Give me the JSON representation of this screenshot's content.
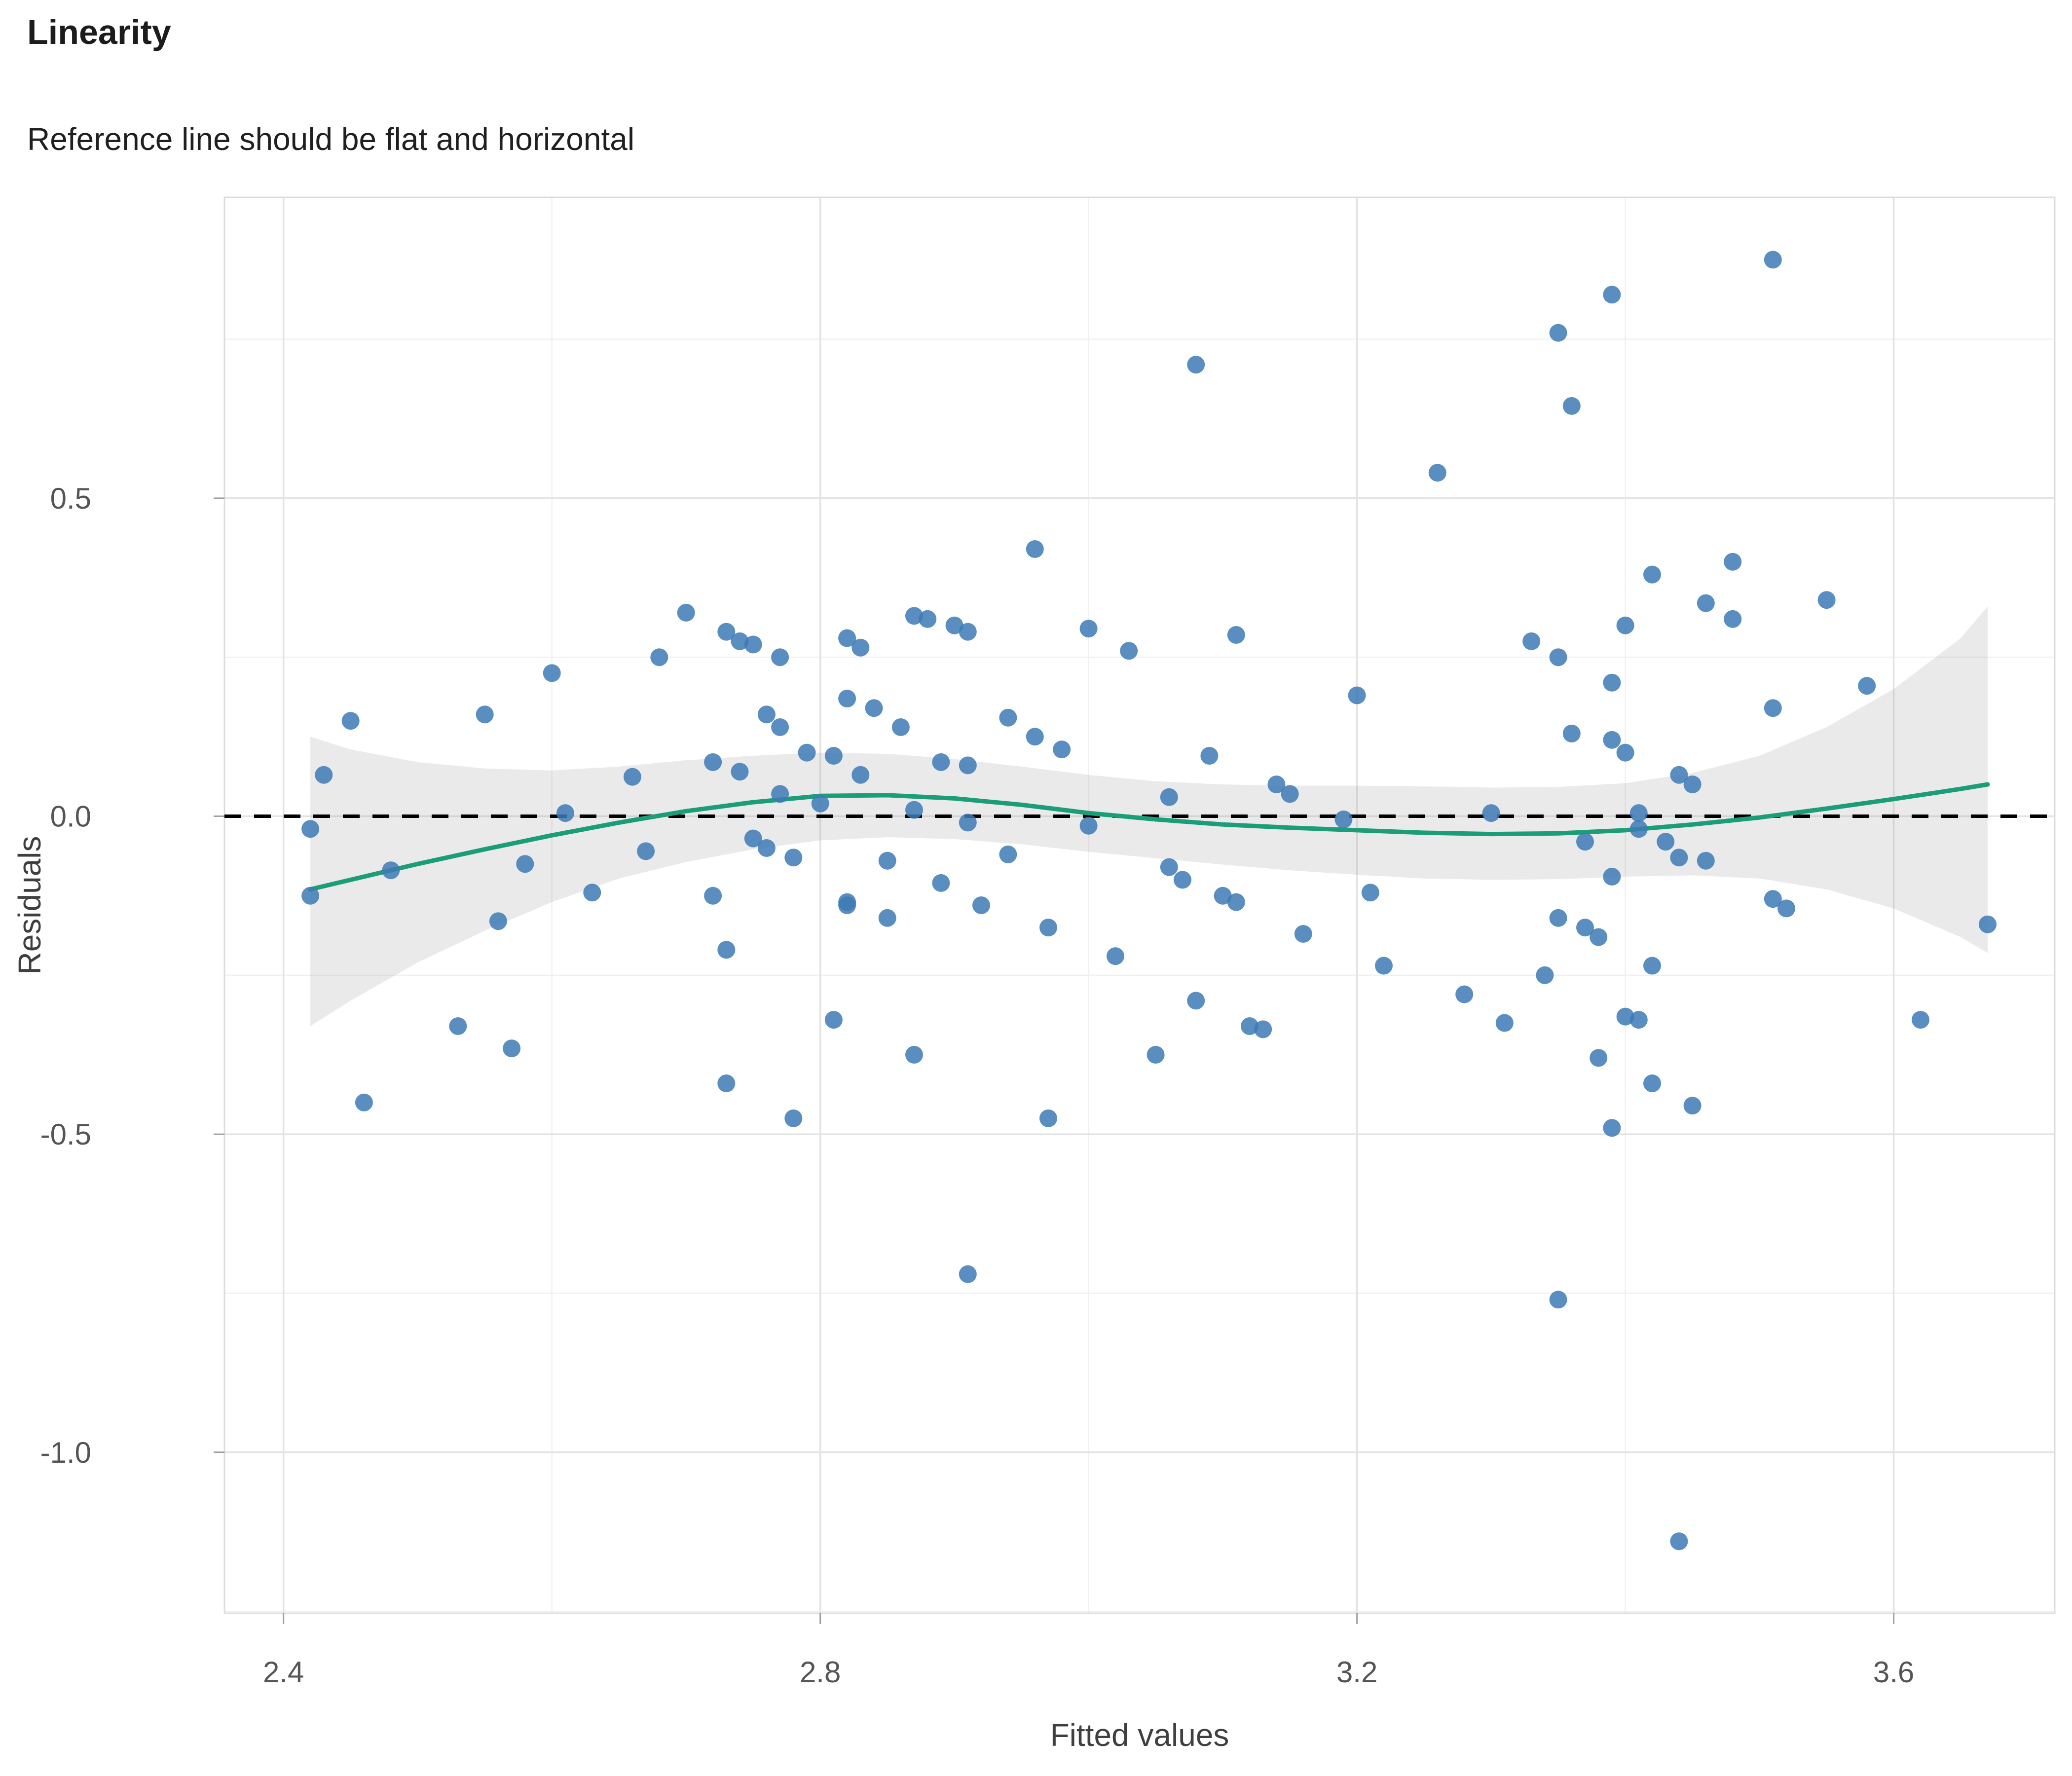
{
  "chart_data": {
    "type": "scatter",
    "title": "Linearity",
    "subtitle": "Reference line should be flat and horizontal",
    "xlabel": "Fitted values",
    "ylabel": "Residuals",
    "xlim": [
      2.356,
      3.72
    ],
    "ylim": [
      -1.253,
      0.973
    ],
    "grid": true,
    "x_ticks": [
      2.4,
      2.8,
      3.2,
      3.6
    ],
    "x_tick_labels": [
      "2.4",
      "2.8",
      "3.2",
      "3.6"
    ],
    "x_minor_ticks": [
      2.6,
      3.0,
      3.4
    ],
    "y_ticks": [
      0.5,
      0.0,
      -0.5,
      -1.0
    ],
    "y_tick_labels": [
      "0.5",
      "0.0",
      "-0.5",
      "-1.0"
    ],
    "y_minor_ticks": [
      0.75,
      0.25,
      -0.25,
      -0.75,
      -1.25
    ],
    "reference_line_y": 0,
    "points": [
      [
        2.42,
        -0.02
      ],
      [
        2.42,
        -0.125
      ],
      [
        2.43,
        0.065
      ],
      [
        2.45,
        0.15
      ],
      [
        2.46,
        -0.45
      ],
      [
        2.48,
        -0.085
      ],
      [
        2.53,
        -0.33
      ],
      [
        2.55,
        0.16
      ],
      [
        2.56,
        -0.165
      ],
      [
        2.57,
        -0.365
      ],
      [
        2.58,
        -0.075
      ],
      [
        2.6,
        0.225
      ],
      [
        2.61,
        0.005
      ],
      [
        2.63,
        -0.12
      ],
      [
        2.66,
        0.062
      ],
      [
        2.67,
        -0.055
      ],
      [
        2.68,
        0.25
      ],
      [
        2.7,
        0.32
      ],
      [
        2.72,
        0.085
      ],
      [
        2.72,
        -0.125
      ],
      [
        2.73,
        0.29
      ],
      [
        2.73,
        -0.21
      ],
      [
        2.73,
        -0.42
      ],
      [
        2.74,
        0.275
      ],
      [
        2.74,
        0.07
      ],
      [
        2.75,
        -0.035
      ],
      [
        2.75,
        0.27
      ],
      [
        2.76,
        0.16
      ],
      [
        2.76,
        -0.05
      ],
      [
        2.77,
        0.25
      ],
      [
        2.77,
        0.14
      ],
      [
        2.77,
        0.035
      ],
      [
        2.78,
        -0.065
      ],
      [
        2.78,
        -0.475
      ],
      [
        2.79,
        0.1
      ],
      [
        2.8,
        0.02
      ],
      [
        2.81,
        0.095
      ],
      [
        2.81,
        -0.32
      ],
      [
        2.82,
        0.28
      ],
      [
        2.82,
        0.185
      ],
      [
        2.82,
        -0.135
      ],
      [
        2.82,
        -0.14
      ],
      [
        2.83,
        0.265
      ],
      [
        2.83,
        0.065
      ],
      [
        2.84,
        0.17
      ],
      [
        2.85,
        -0.07
      ],
      [
        2.85,
        -0.16
      ],
      [
        2.86,
        0.14
      ],
      [
        2.87,
        0.315
      ],
      [
        2.87,
        0.01
      ],
      [
        2.87,
        -0.375
      ],
      [
        2.88,
        0.31
      ],
      [
        2.89,
        0.085
      ],
      [
        2.89,
        -0.105
      ],
      [
        2.9,
        0.3
      ],
      [
        2.91,
        0.29
      ],
      [
        2.91,
        -0.01
      ],
      [
        2.91,
        0.08
      ],
      [
        2.91,
        -0.72
      ],
      [
        2.92,
        -0.14
      ],
      [
        2.94,
        0.155
      ],
      [
        2.94,
        -0.06
      ],
      [
        2.96,
        0.42
      ],
      [
        2.96,
        0.125
      ],
      [
        2.97,
        -0.175
      ],
      [
        2.97,
        -0.475
      ],
      [
        2.98,
        0.105
      ],
      [
        3.0,
        0.295
      ],
      [
        3.0,
        -0.015
      ],
      [
        3.02,
        -0.22
      ],
      [
        3.03,
        0.26
      ],
      [
        3.05,
        -0.375
      ],
      [
        3.06,
        0.03
      ],
      [
        3.06,
        -0.08
      ],
      [
        3.07,
        -0.1
      ],
      [
        3.08,
        0.71
      ],
      [
        3.08,
        -0.29
      ],
      [
        3.09,
        0.095
      ],
      [
        3.1,
        -0.125
      ],
      [
        3.11,
        0.285
      ],
      [
        3.11,
        -0.135
      ],
      [
        3.12,
        -0.33
      ],
      [
        3.13,
        -0.335
      ],
      [
        3.14,
        0.05
      ],
      [
        3.15,
        0.035
      ],
      [
        3.16,
        -0.185
      ],
      [
        3.19,
        -0.005
      ],
      [
        3.2,
        0.19
      ],
      [
        3.21,
        -0.12
      ],
      [
        3.22,
        -0.235
      ],
      [
        3.26,
        0.54
      ],
      [
        3.28,
        -0.28
      ],
      [
        3.3,
        0.005
      ],
      [
        3.31,
        -0.325
      ],
      [
        3.33,
        0.275
      ],
      [
        3.34,
        -0.25
      ],
      [
        3.35,
        0.76
      ],
      [
        3.35,
        0.25
      ],
      [
        3.35,
        -0.16
      ],
      [
        3.35,
        -0.76
      ],
      [
        3.36,
        0.645
      ],
      [
        3.36,
        0.13
      ],
      [
        3.37,
        -0.175
      ],
      [
        3.37,
        -0.04
      ],
      [
        3.38,
        -0.19
      ],
      [
        3.38,
        -0.38
      ],
      [
        3.39,
        0.82
      ],
      [
        3.39,
        0.21
      ],
      [
        3.39,
        0.12
      ],
      [
        3.39,
        -0.095
      ],
      [
        3.39,
        -0.49
      ],
      [
        3.4,
        0.3
      ],
      [
        3.4,
        0.1
      ],
      [
        3.4,
        -0.315
      ],
      [
        3.41,
        0.005
      ],
      [
        3.41,
        -0.02
      ],
      [
        3.41,
        -0.32
      ],
      [
        3.42,
        0.38
      ],
      [
        3.42,
        -0.235
      ],
      [
        3.42,
        -0.42
      ],
      [
        3.43,
        -0.04
      ],
      [
        3.44,
        0.065
      ],
      [
        3.44,
        -0.065
      ],
      [
        3.44,
        -1.14
      ],
      [
        3.45,
        -0.455
      ],
      [
        3.45,
        0.05
      ],
      [
        3.46,
        0.335
      ],
      [
        3.46,
        -0.07
      ],
      [
        3.48,
        0.4
      ],
      [
        3.48,
        0.31
      ],
      [
        3.51,
        0.875
      ],
      [
        3.51,
        0.17
      ],
      [
        3.51,
        -0.13
      ],
      [
        3.52,
        -0.145
      ],
      [
        3.55,
        0.34
      ],
      [
        3.58,
        0.205
      ],
      [
        3.62,
        -0.32
      ],
      [
        3.67,
        -0.17
      ]
    ],
    "smooth": {
      "x": [
        2.42,
        2.45,
        2.5,
        2.55,
        2.6,
        2.65,
        2.7,
        2.75,
        2.8,
        2.85,
        2.9,
        2.95,
        3.0,
        3.05,
        3.1,
        3.15,
        3.2,
        3.25,
        3.3,
        3.35,
        3.4,
        3.45,
        3.5,
        3.55,
        3.6,
        3.65,
        3.67
      ],
      "y": [
        -0.115,
        -0.1,
        -0.075,
        -0.052,
        -0.03,
        -0.01,
        0.008,
        0.022,
        0.032,
        0.033,
        0.028,
        0.018,
        0.005,
        -0.005,
        -0.013,
        -0.018,
        -0.022,
        -0.026,
        -0.028,
        -0.027,
        -0.022,
        -0.013,
        -0.002,
        0.012,
        0.027,
        0.043,
        0.05
      ],
      "upper": [
        0.125,
        0.105,
        0.085,
        0.075,
        0.072,
        0.078,
        0.088,
        0.095,
        0.1,
        0.098,
        0.09,
        0.078,
        0.065,
        0.055,
        0.05,
        0.048,
        0.048,
        0.047,
        0.045,
        0.046,
        0.052,
        0.068,
        0.095,
        0.14,
        0.2,
        0.28,
        0.33
      ],
      "lower": [
        -0.33,
        -0.29,
        -0.23,
        -0.18,
        -0.135,
        -0.098,
        -0.072,
        -0.052,
        -0.038,
        -0.033,
        -0.036,
        -0.044,
        -0.056,
        -0.066,
        -0.076,
        -0.085,
        -0.092,
        -0.098,
        -0.1,
        -0.099,
        -0.095,
        -0.093,
        -0.098,
        -0.115,
        -0.145,
        -0.19,
        -0.215
      ]
    },
    "colors": {
      "point": "#3d7ab5",
      "smooth": "#1b9e77",
      "band": "#8c8c8c",
      "reference": "#000000",
      "grid_major": "#e3e3e3",
      "grid_minor": "#f0f0f0",
      "axis": "#dcdcdc",
      "tick": "#a0a0a0",
      "tick_label": "#555555"
    }
  }
}
